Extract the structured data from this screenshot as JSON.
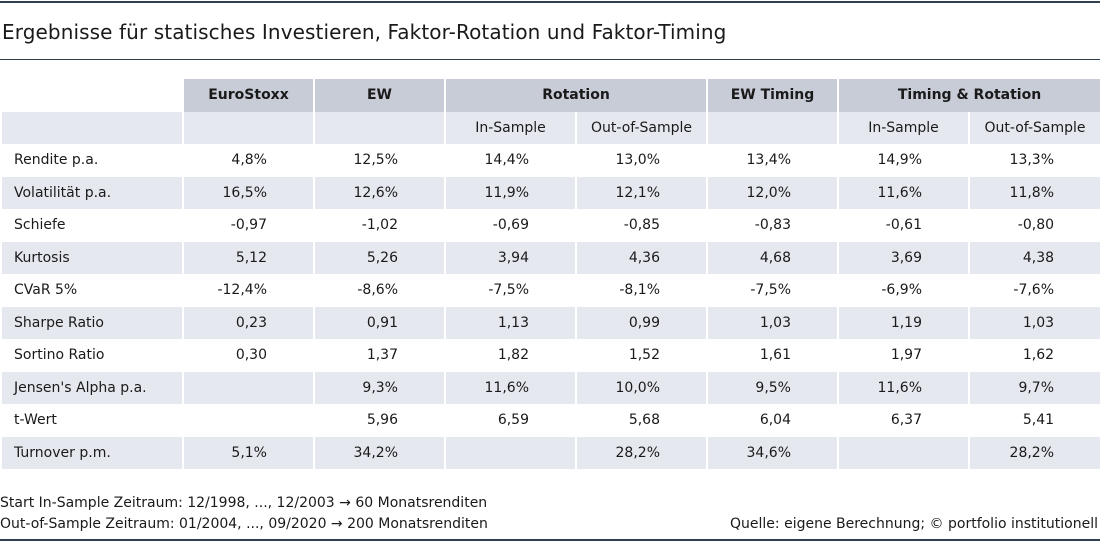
{
  "title": "Ergebnisse für statisches Investieren, Faktor-Rotation und Faktor-Timing",
  "table": {
    "groups": [
      "EuroStoxx",
      "EW",
      "Rotation",
      "EW Timing",
      "Timing & Rotation"
    ],
    "subheaders": [
      "",
      "",
      "In-Sample",
      "Out-of-Sample",
      "",
      "In-Sample",
      "Out-of-Sample"
    ],
    "rows": [
      {
        "label": "Rendite p.a.",
        "values": [
          "4,8%",
          "12,5%",
          "14,4%",
          "13,0%",
          "13,4%",
          "14,9%",
          "13,3%"
        ]
      },
      {
        "label": "Volatilität p.a.",
        "values": [
          "16,5%",
          "12,6%",
          "11,9%",
          "12,1%",
          "12,0%",
          "11,6%",
          "11,8%"
        ]
      },
      {
        "label": "Schiefe",
        "values": [
          "-0,97",
          "-1,02",
          "-0,69",
          "-0,85",
          "-0,83",
          "-0,61",
          "-0,80"
        ]
      },
      {
        "label": "Kurtosis",
        "values": [
          "5,12",
          "5,26",
          "3,94",
          "4,36",
          "4,68",
          "3,69",
          "4,38"
        ]
      },
      {
        "label": "CVaR 5%",
        "values": [
          "-12,4%",
          "-8,6%",
          "-7,5%",
          "-8,1%",
          "-7,5%",
          "-6,9%",
          "-7,6%"
        ]
      },
      {
        "label": "Sharpe Ratio",
        "values": [
          "0,23",
          "0,91",
          "1,13",
          "0,99",
          "1,03",
          "1,19",
          "1,03"
        ]
      },
      {
        "label": "Sortino Ratio",
        "values": [
          "0,30",
          "1,37",
          "1,82",
          "1,52",
          "1,61",
          "1,97",
          "1,62"
        ]
      },
      {
        "label": "Jensen's Alpha p.a.",
        "values": [
          "",
          "9,3%",
          "11,6%",
          "10,0%",
          "9,5%",
          "11,6%",
          "9,7%"
        ]
      },
      {
        "label": "t-Wert",
        "values": [
          "",
          "5,96",
          "6,59",
          "5,68",
          "6,04",
          "6,37",
          "5,41"
        ]
      },
      {
        "label": "Turnover p.m.",
        "values": [
          "5,1%",
          "34,2%",
          "",
          "28,2%",
          "34,6%",
          "",
          "28,2%"
        ]
      }
    ]
  },
  "notes": [
    "Start In-Sample Zeitraum: 12/1998, ..., 12/2003 → 60 Monatsrenditen",
    "Out-of-Sample Zeitraum: 01/2004, ..., 09/2020 → 200 Monatsrenditen"
  ],
  "source": "Quelle: eigene Berechnung; © portfolio institutionell"
}
